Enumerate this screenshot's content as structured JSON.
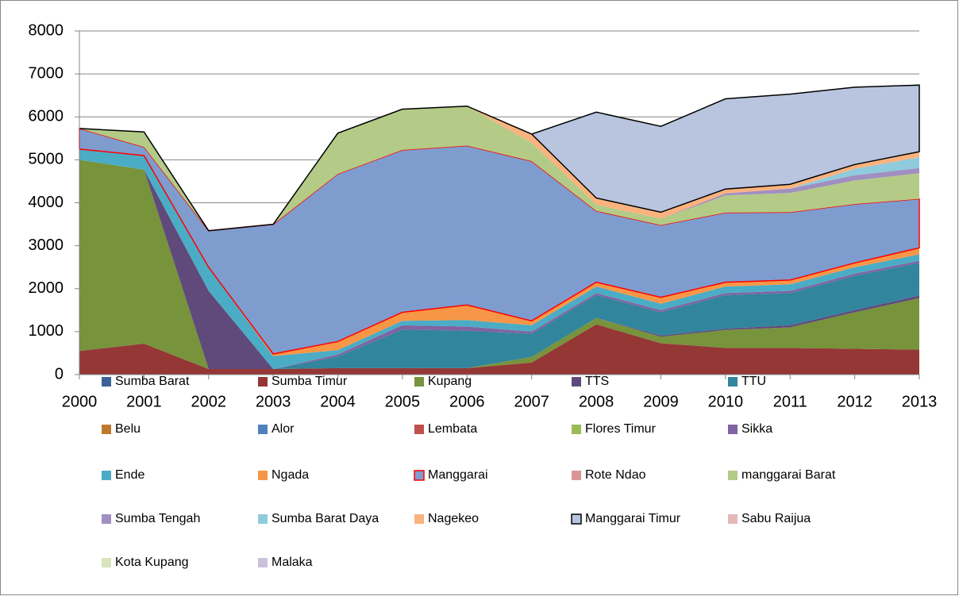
{
  "chart_data": {
    "type": "stacked-area",
    "x": [
      2000,
      2001,
      2002,
      2003,
      2004,
      2005,
      2006,
      2007,
      2008,
      2009,
      2010,
      2011,
      2012,
      2013
    ],
    "xlim": [
      2000,
      2013
    ],
    "xticks": [
      2000,
      2001,
      2002,
      2003,
      2004,
      2005,
      2006,
      2007,
      2008,
      2009,
      2010,
      2011,
      2012,
      2013
    ],
    "ylim": [
      0,
      8000
    ],
    "yticks": [
      0,
      1000,
      2000,
      3000,
      4000,
      5000,
      6000,
      7000,
      8000
    ],
    "grid": true,
    "legend": "bottom",
    "series": [
      {
        "name": "Sumba Barat",
        "color": "#3a6296",
        "values": [
          0,
          0,
          0,
          0,
          0,
          0,
          0,
          0,
          0,
          0,
          0,
          0,
          0,
          0
        ]
      },
      {
        "name": "Sumba Timur",
        "color": "#953735",
        "values": [
          550,
          720,
          130,
          130,
          150,
          150,
          150,
          280,
          1170,
          730,
          620,
          620,
          600,
          580
        ]
      },
      {
        "name": "Kupang",
        "color": "#77933c",
        "values": [
          4450,
          4050,
          0,
          0,
          0,
          0,
          0,
          130,
          150,
          150,
          420,
          480,
          850,
          1200
        ]
      },
      {
        "name": "TTS",
        "color": "#604a7b",
        "values": [
          0,
          0,
          1820,
          0,
          0,
          0,
          0,
          0,
          0,
          30,
          30,
          50,
          50,
          60
        ]
      },
      {
        "name": "TTU",
        "color": "#31859c",
        "values": [
          0,
          0,
          0,
          0,
          270,
          900,
          870,
          540,
          530,
          540,
          780,
          750,
          800,
          760
        ]
      },
      {
        "name": "Belu",
        "color": "#c0782f",
        "values": [
          0,
          0,
          0,
          0,
          0,
          0,
          0,
          0,
          0,
          0,
          0,
          0,
          0,
          0
        ]
      },
      {
        "name": "Alor",
        "color": "#4f81bd",
        "values": [
          0,
          0,
          0,
          0,
          0,
          0,
          0,
          0,
          0,
          0,
          0,
          0,
          0,
          0
        ]
      },
      {
        "name": "Lembata",
        "color": "#c0504d",
        "values": [
          0,
          0,
          0,
          0,
          0,
          0,
          0,
          0,
          0,
          0,
          0,
          0,
          0,
          0
        ]
      },
      {
        "name": "Flores Timur",
        "color": "#9bbb59",
        "values": [
          0,
          0,
          0,
          0,
          0,
          0,
          0,
          0,
          0,
          0,
          0,
          0,
          0,
          0
        ]
      },
      {
        "name": "Sikka",
        "color": "#8064a2",
        "values": [
          0,
          0,
          0,
          0,
          50,
          100,
          100,
          50,
          50,
          50,
          50,
          50,
          50,
          50
        ]
      },
      {
        "name": "Ende",
        "color": "#4bacc6",
        "values": [
          250,
          330,
          550,
          300,
          100,
          100,
          150,
          150,
          150,
          150,
          150,
          150,
          150,
          150
        ]
      },
      {
        "name": "Ngada",
        "color": "#f79646",
        "values": [
          0,
          0,
          0,
          50,
          200,
          200,
          350,
          100,
          100,
          150,
          100,
          100,
          100,
          150
        ]
      },
      {
        "name": "Manggarai",
        "color": "#7f9ccf",
        "stroke": "#ff0000",
        "values": [
          480,
          200,
          850,
          3020,
          3900,
          3780,
          3710,
          3720,
          1660,
          1680,
          1620,
          1580,
          1370,
          1140
        ]
      },
      {
        "name": "Rote Ndao",
        "color": "#d99694",
        "values": [
          0,
          0,
          0,
          0,
          0,
          0,
          0,
          0,
          0,
          0,
          0,
          0,
          0,
          0
        ]
      },
      {
        "name": "manggarai Barat",
        "color": "#b3cb87",
        "values": [
          0,
          350,
          0,
          0,
          950,
          950,
          920,
          430,
          150,
          150,
          400,
          450,
          550,
          600
        ]
      },
      {
        "name": "Sumba Tengah",
        "color": "#a08fc0",
        "values": [
          0,
          0,
          0,
          0,
          0,
          0,
          0,
          0,
          0,
          0,
          50,
          100,
          120,
          120
        ]
      },
      {
        "name": "Sumba Barat Daya",
        "color": "#8fcbdd",
        "values": [
          0,
          0,
          0,
          0,
          0,
          0,
          0,
          0,
          0,
          0,
          0,
          0,
          150,
          250
        ]
      },
      {
        "name": "Nagekeo",
        "color": "#fab27e",
        "values": [
          0,
          0,
          0,
          0,
          0,
          0,
          0,
          200,
          150,
          150,
          100,
          100,
          100,
          130
        ]
      },
      {
        "name": "Manggarai Timur",
        "color": "#b9c5df",
        "stroke": "#000000",
        "values": [
          0,
          0,
          0,
          0,
          0,
          0,
          0,
          0,
          2000,
          2000,
          2100,
          2100,
          1800,
          1550
        ]
      },
      {
        "name": "Sabu Raijua",
        "color": "#e6b9b8",
        "values": [
          0,
          0,
          0,
          0,
          0,
          0,
          0,
          0,
          0,
          0,
          0,
          0,
          0,
          0
        ]
      },
      {
        "name": "Kota Kupang",
        "color": "#d7e4bd",
        "values": [
          0,
          0,
          0,
          0,
          0,
          0,
          0,
          0,
          0,
          0,
          0,
          0,
          0,
          0
        ]
      },
      {
        "name": "Malaka",
        "color": "#ccc1da",
        "values": [
          0,
          0,
          0,
          0,
          0,
          0,
          0,
          0,
          0,
          0,
          0,
          0,
          0,
          0
        ]
      }
    ]
  }
}
